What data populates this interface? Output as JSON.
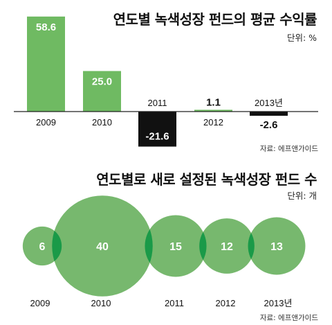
{
  "chart_data": [
    {
      "type": "bar",
      "title": "연도별 녹색성장 펀드의 평균 수익률",
      "unit_label": "단위: %",
      "source": "자료: 에프앤가이드",
      "categories": [
        "2009",
        "2010",
        "2011",
        "2012",
        "2013년"
      ],
      "values": [
        58.6,
        25.0,
        -21.6,
        1.1,
        -2.6
      ],
      "value_labels": [
        "58.6",
        "25.0",
        "-21.6",
        "1.1",
        "-2.6"
      ],
      "colors": {
        "positive": "#6fba62",
        "negative": "#111111"
      }
    },
    {
      "type": "bubble",
      "title": "연도별로 새로 설정된 녹색성장 펀드 수",
      "unit_label": "단위: 개",
      "source": "자료: 에프앤가이드",
      "categories": [
        "2009",
        "2010",
        "2011",
        "2012",
        "2013년"
      ],
      "values": [
        6,
        40,
        15,
        12,
        13
      ],
      "colors": {
        "bubble": "#77b86e",
        "overlap": "#1a9a48"
      }
    }
  ]
}
